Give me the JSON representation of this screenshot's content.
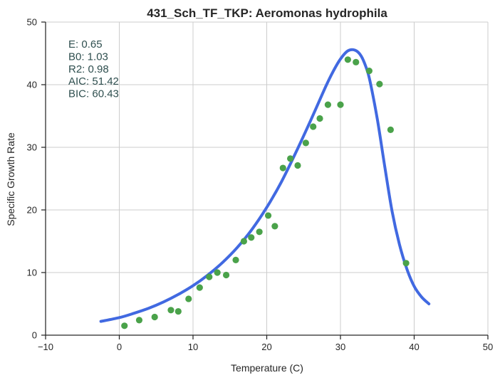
{
  "chart_data": {
    "type": "scatter",
    "title": "431_Sch_TF_TKP: Aeromonas hydrophila",
    "xlabel": "Temperature (C)",
    "ylabel": "Specific Growth Rate",
    "xlim": [
      -10,
      50
    ],
    "ylim": [
      0,
      50
    ],
    "xticks": [
      -10,
      0,
      10,
      20,
      30,
      40,
      50
    ],
    "yticks": [
      0,
      10,
      20,
      30,
      40,
      50
    ],
    "grid": true,
    "annotations": [
      {
        "label": "E:",
        "value": "0.65"
      },
      {
        "label": "B0:",
        "value": "1.03"
      },
      {
        "label": "R2:",
        "value": "0.98"
      },
      {
        "label": "AIC:",
        "value": "51.42"
      },
      {
        "label": "BIC:",
        "value": "60.43"
      }
    ],
    "colors": {
      "points": "#4aa24a",
      "fit": "#4169e1"
    },
    "series": [
      {
        "kind": "points",
        "x": [
          0.7,
          2.7,
          4.8,
          7.0,
          8.0,
          9.4,
          10.9,
          12.2,
          13.3,
          14.5,
          15.8,
          16.9,
          17.9,
          19.0,
          20.2,
          21.1,
          22.2,
          23.2,
          24.2,
          25.3,
          26.3,
          27.2,
          28.3,
          30.0,
          31.0,
          32.1,
          33.9,
          35.3,
          36.8,
          38.9
        ],
        "y": [
          1.5,
          2.4,
          2.9,
          4.0,
          3.8,
          5.8,
          7.6,
          9.3,
          10.0,
          9.6,
          12.0,
          15.0,
          15.6,
          16.5,
          19.1,
          17.4,
          26.7,
          28.2,
          27.1,
          30.7,
          33.3,
          34.6,
          36.8,
          36.8,
          44.0,
          43.6,
          42.2,
          40.1,
          32.8,
          11.5
        ]
      },
      {
        "kind": "fit",
        "x": [
          -2.5,
          0,
          2,
          4,
          6,
          8,
          10,
          12,
          14,
          16,
          18,
          20,
          22,
          24,
          26,
          28,
          29,
          30,
          31,
          32,
          32.8,
          33.5,
          34,
          35,
          36,
          37,
          38,
          39,
          40,
          41,
          42
        ],
        "y": [
          2.2,
          2.8,
          3.5,
          4.3,
          5.3,
          6.5,
          7.9,
          9.6,
          11.6,
          14.0,
          16.9,
          20.4,
          24.5,
          29.3,
          34.4,
          39.7,
          42.1,
          44.1,
          45.4,
          45.5,
          44.6,
          42.7,
          40.6,
          34.5,
          27.0,
          19.8,
          14.5,
          10.6,
          7.8,
          6.1,
          5.0
        ]
      }
    ]
  }
}
